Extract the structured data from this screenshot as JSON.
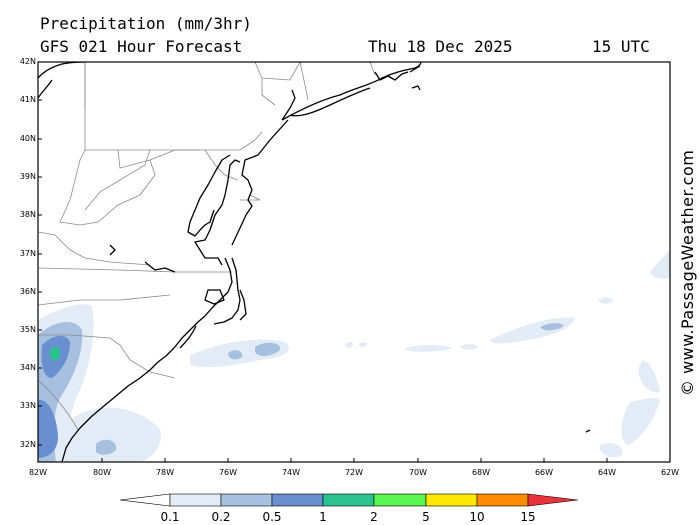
{
  "header": {
    "title": "Precipitation (mm/3hr)",
    "subtitle": "GFS 021 Hour Forecast",
    "date": "Thu 18 Dec 2025",
    "time": "15 UTC"
  },
  "map": {
    "lat_labels": [
      "42N",
      "41N",
      "40N",
      "39N",
      "38N",
      "37N",
      "36N",
      "35N",
      "34N",
      "33N",
      "32N"
    ],
    "lon_labels": [
      "82W",
      "80W",
      "78W",
      "76W",
      "74W",
      "72W",
      "70W",
      "68W",
      "66W",
      "64W",
      "62W"
    ],
    "watermark": "© www.PassageWeather.com"
  },
  "colorbar": {
    "colors": [
      "#ffffff",
      "#e3ebf7",
      "#a8c0e0",
      "#6a8fd0",
      "#2ac28f",
      "#5cf552",
      "#ffe800",
      "#ff8a00",
      "#e8323c"
    ],
    "labels": [
      "0.1",
      "0.2",
      "0.5",
      "1",
      "2",
      "5",
      "10",
      "15"
    ]
  }
}
